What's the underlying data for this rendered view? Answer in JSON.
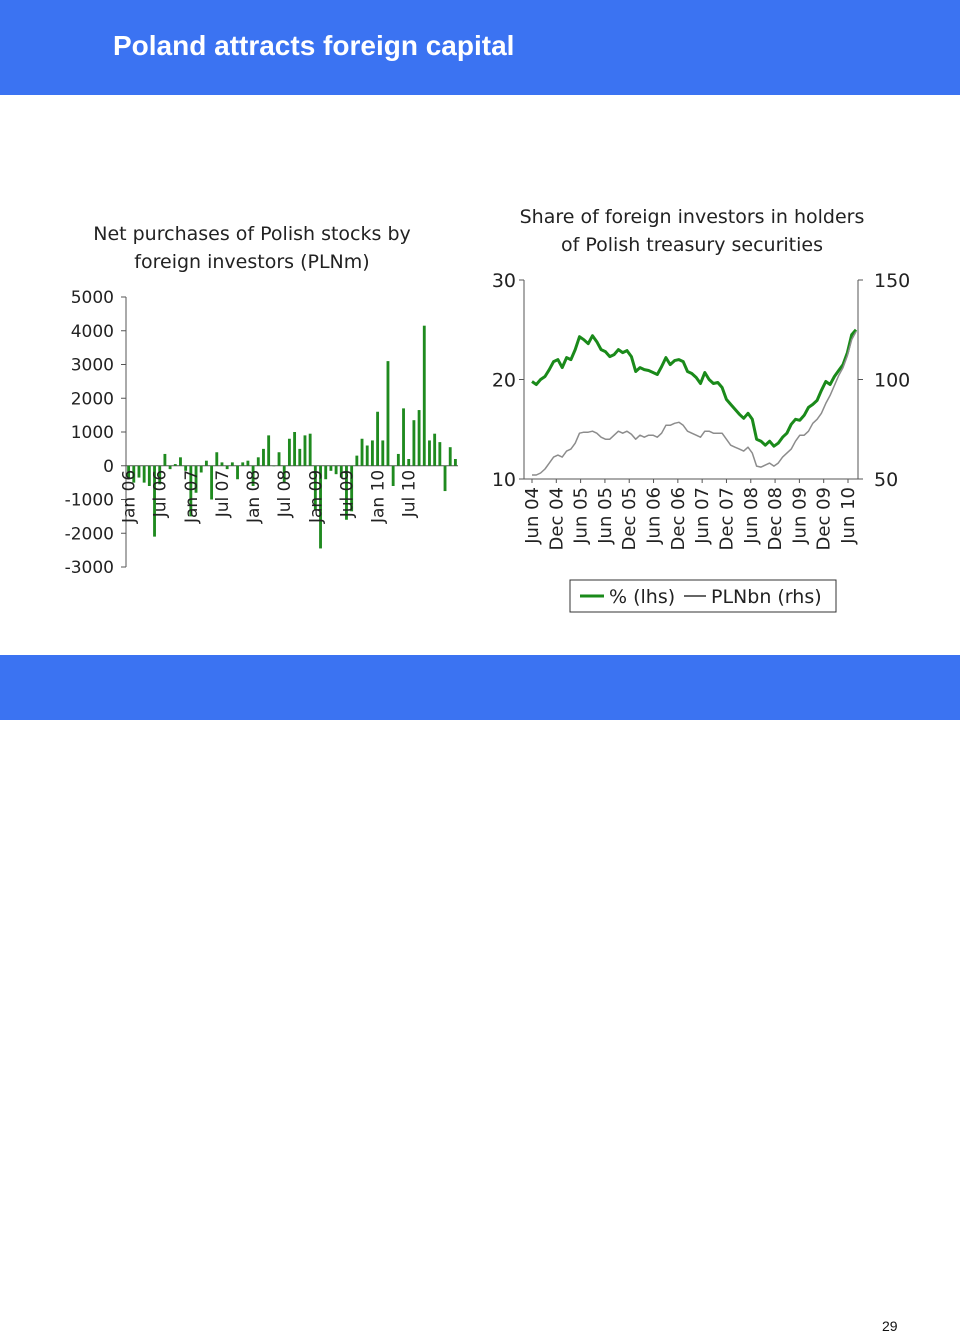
{
  "slide": {
    "title": "Poland attracts foreign capital",
    "page_number": "29"
  },
  "colors": {
    "bar": "#1f8a1f",
    "share_line": "#1a8a1a",
    "pln_line": "#8c8c8c",
    "brand": "#3b73f2"
  },
  "chart_data": [
    {
      "type": "bar",
      "title_lines": [
        "Net purchases of Polish stocks by",
        "foreign investors (PLNm)"
      ],
      "ylim": [
        -3000,
        5000
      ],
      "yticks": [
        "-3000",
        "-2000",
        "-1000",
        "0",
        "1000",
        "2000",
        "3000",
        "4000",
        "5000"
      ],
      "xtick_labels": [
        "Jan 06",
        "Jul 06",
        "Jan 07",
        "Jul 07",
        "Jan 08",
        "Jul 08",
        "Jan 09",
        "Jul 09",
        "Jan 10",
        "Jul 10"
      ],
      "values": [
        -400,
        -500,
        -350,
        -500,
        -600,
        -2100,
        -550,
        350,
        -100,
        50,
        250,
        -150,
        -1500,
        -800,
        -200,
        150,
        -1000,
        400,
        100,
        -100,
        100,
        -400,
        100,
        150,
        -600,
        250,
        500,
        900,
        0,
        400,
        -500,
        800,
        1000,
        500,
        900,
        950,
        -1300,
        -2450,
        -400,
        -150,
        -250,
        -350,
        -1600,
        -1350,
        300,
        800,
        600,
        750,
        1600,
        750,
        3100,
        -600,
        350,
        1700,
        200,
        1350,
        1650,
        4150,
        750,
        950,
        700,
        -750,
        550,
        200
      ]
    },
    {
      "type": "line",
      "title_lines": [
        "Share of foreign investors in holders",
        "of Polish treasury securities"
      ],
      "y_left": {
        "ylim": [
          10,
          30
        ],
        "ticks": [
          "10",
          "20",
          "30"
        ]
      },
      "y_right": {
        "ylim": [
          50,
          150
        ],
        "ticks": [
          "50",
          "100",
          "150"
        ]
      },
      "xtick_labels": [
        "Jun 04",
        "Dec 04",
        "Jun 05",
        "Jun 05",
        "Dec 05",
        "Jun 06",
        "Dec 06",
        "Jun 07",
        "Dec 07",
        "Jun 08",
        "Dec 08",
        "Jun 09",
        "Dec 09",
        "Jun 10"
      ],
      "legend": [
        "% (lhs)",
        "PLNbn (rhs)"
      ],
      "series": [
        {
          "name": "% (lhs)",
          "axis": "left",
          "values": [
            19.8,
            19.5,
            20.0,
            20.3,
            21.0,
            21.8,
            22.0,
            21.2,
            22.2,
            22.0,
            23.0,
            24.3,
            24.0,
            23.6,
            24.4,
            23.8,
            23.0,
            22.8,
            22.3,
            22.5,
            23.0,
            22.7,
            22.9,
            22.3,
            20.8,
            21.2,
            21.0,
            20.9,
            20.7,
            20.5,
            21.3,
            22.2,
            21.5,
            21.9,
            22.0,
            21.8,
            20.8,
            20.6,
            20.2,
            19.6,
            20.7,
            20.0,
            19.6,
            19.7,
            19.2,
            18.0,
            17.5,
            17.0,
            16.5,
            16.1,
            16.6,
            16.0,
            14.0,
            13.8,
            13.4,
            13.8,
            13.3,
            13.6,
            14.2,
            14.6,
            15.5,
            16.0,
            15.9,
            16.4,
            17.2,
            17.5,
            17.9,
            18.9,
            19.8,
            19.5,
            20.3,
            20.9,
            21.5,
            22.7,
            24.5,
            25.0
          ]
        },
        {
          "name": "PLNbn (rhs)",
          "axis": "right",
          "values": [
            52.0,
            52.0,
            53.0,
            55.0,
            58.0,
            61.0,
            62.0,
            61.0,
            64.0,
            65.0,
            68.0,
            73.0,
            73.5,
            73.5,
            74.0,
            73.0,
            71.0,
            70.0,
            70.0,
            72.0,
            74.0,
            73.0,
            74.0,
            72.5,
            70.0,
            72.0,
            71.0,
            72.0,
            72.0,
            71.0,
            73.0,
            77.0,
            77.0,
            78.0,
            78.5,
            77.0,
            74.0,
            73.0,
            72.0,
            71.0,
            74.0,
            74.0,
            73.0,
            73.0,
            73.0,
            70.0,
            67.0,
            66.0,
            65.0,
            64.0,
            66.0,
            63.0,
            56.5,
            56.0,
            57.0,
            58.0,
            56.5,
            58.0,
            61.0,
            63.0,
            65.0,
            69.0,
            72.0,
            72.0,
            74.0,
            78.0,
            80.0,
            83.0,
            88.0,
            92.0,
            97.0,
            102.0,
            106.0,
            112.0,
            120.0,
            124.0
          ]
        }
      ]
    }
  ]
}
